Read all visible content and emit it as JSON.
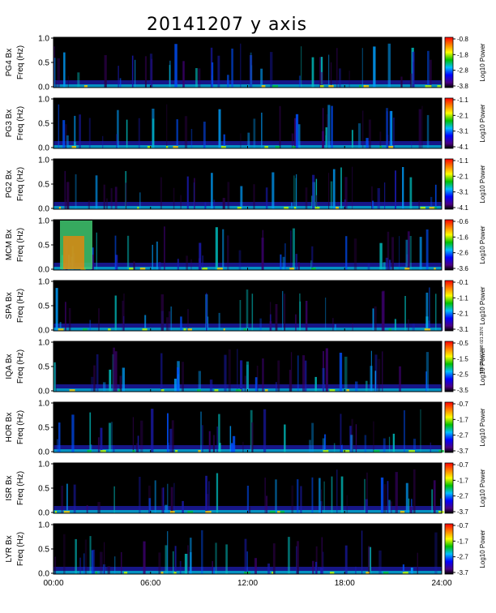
{
  "title": "20141207 y axis",
  "stamp": "ISR 2014/12/08 021.3976",
  "chart_data": {
    "type": "heatmap",
    "title": "20141207 y axis",
    "x_axis": {
      "range": [
        "00:00",
        "24:00"
      ],
      "ticks": [
        "00:00",
        "06:00",
        "12:00",
        "18:00",
        "24:00"
      ]
    },
    "y_axis": {
      "label_suffix": "Freq (Hz)",
      "range": [
        0.0,
        1.0
      ],
      "ticks": [
        "0.0",
        "0.5",
        "1.0"
      ]
    },
    "colorbar_label": "Log10 Power",
    "panels": [
      {
        "station": "PG4 Bx",
        "colorbar_ticks": [
          "-0.8",
          "-1.8",
          "-2.8",
          "-3.8"
        ]
      },
      {
        "station": "PG3 Bx",
        "colorbar_ticks": [
          "-1.1",
          "-2.1",
          "-3.1",
          "-4.1"
        ]
      },
      {
        "station": "PG2 Bx",
        "colorbar_ticks": [
          "-1.1",
          "-2.1",
          "-3.1",
          "-4.1"
        ]
      },
      {
        "station": "MCM Bx",
        "colorbar_ticks": [
          "-0.6",
          "-1.6",
          "-2.6",
          "-3.6"
        ]
      },
      {
        "station": "SPA Bx",
        "colorbar_ticks": [
          "-0.1",
          "-1.1",
          "-2.1",
          "-3.1"
        ]
      },
      {
        "station": "IQA Bx",
        "colorbar_ticks": [
          "-0.5",
          "-1.5",
          "-2.5",
          "-3.5"
        ]
      },
      {
        "station": "HOR Bx",
        "colorbar_ticks": [
          "-0.7",
          "-1.7",
          "-2.7",
          "-3.7"
        ]
      },
      {
        "station": "ISR Bx",
        "colorbar_ticks": [
          "-0.7",
          "-1.7",
          "-2.7",
          "-3.7"
        ]
      },
      {
        "station": "LYR Bx",
        "colorbar_ticks": [
          "-0.7",
          "-1.7",
          "-2.7",
          "-3.7"
        ]
      }
    ]
  }
}
